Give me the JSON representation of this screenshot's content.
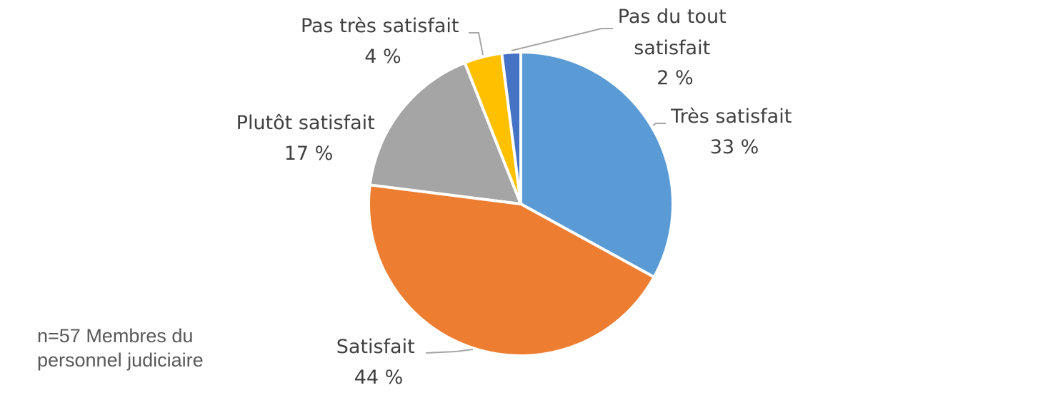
{
  "chart_data": {
    "type": "pie",
    "series": [
      {
        "values": [
          {
            "label": "Très satisfait",
            "value": 33,
            "value_label": "33 %",
            "color": "#5b9bd5"
          },
          {
            "label": "Satisfait",
            "value": 44,
            "value_label": "44 %",
            "color": "#ed7d31"
          },
          {
            "label": "Plutôt satisfait",
            "value": 17,
            "value_label": "17 %",
            "color": "#a5a5a5"
          },
          {
            "label": "Pas très satisfait",
            "value": 4,
            "value_label": "4 %",
            "color": "#ffc000"
          },
          {
            "label": "Pas du tout satisfait",
            "value": 2,
            "value_label": "2 %",
            "color": "#4472c4"
          }
        ]
      }
    ],
    "start_angle": "12 o'clock",
    "direction": "clockwise",
    "legend": "none"
  },
  "note": {
    "line1": "n=57 Membres du",
    "line2": "personnel judiciaire"
  }
}
